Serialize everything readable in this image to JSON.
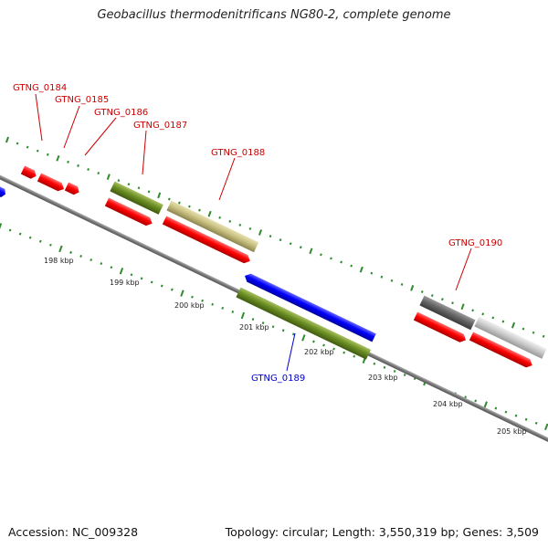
{
  "title": "Geobacillus thermodenitrificans NG80-2, complete genome",
  "footer": {
    "accession": "Accession: NC_009328",
    "summary": "Topology: circular; Length: 3,550,319 bp; Genes: 3,509"
  },
  "scale_labels": [
    "198 kbp",
    "199 kbp",
    "200 kbp",
    "201 kbp",
    "202 kbp",
    "203 kbp",
    "204 kbp",
    "205 kbp"
  ],
  "gene_labels": [
    {
      "name": "GTNG_0184",
      "color": "#cc0000"
    },
    {
      "name": "GTNG_0185",
      "color": "#cc0000"
    },
    {
      "name": "GTNG_0186",
      "color": "#cc0000"
    },
    {
      "name": "GTNG_0187",
      "color": "#cc0000"
    },
    {
      "name": "GTNG_0188",
      "color": "#cc0000"
    },
    {
      "name": "GTNG_0189",
      "color": "#0000cc"
    },
    {
      "name": "GTNG_0190",
      "color": "#cc0000"
    }
  ],
  "colors": {
    "cds_forward": "#ff0000",
    "cds_reverse": "#0000ff",
    "backbone": "#7a7a7a",
    "ticks": "#2e8b2e",
    "feature_olive": "#6b8e23",
    "feature_khaki": "#c8c080",
    "feature_dark_gray": "#666666",
    "feature_light_gray": "#cccccc"
  }
}
